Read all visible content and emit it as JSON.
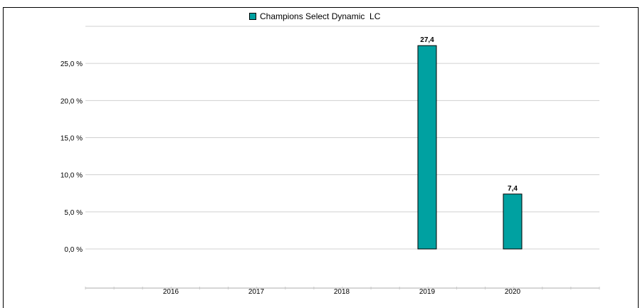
{
  "chart_data": {
    "type": "bar",
    "categories": [
      "2016",
      "2017",
      "2018",
      "2019",
      "2020"
    ],
    "series": [
      {
        "name": "Champions Select Dynamic  LC",
        "values": [
          null,
          null,
          null,
          27.4,
          7.4
        ],
        "data_labels": [
          "",
          "",
          "",
          "27,4",
          "7,4"
        ],
        "color": "#00a1a1"
      }
    ],
    "y_ticks": [
      0,
      5,
      10,
      15,
      20,
      25
    ],
    "y_tick_labels": [
      "0,0 %",
      "5,0 %",
      "10,0 %",
      "15,0 %",
      "20,0 %",
      "25,0 %"
    ],
    "ylim": [
      0,
      30
    ],
    "grid": true,
    "legend_position": "top-center",
    "title": "",
    "xlabel": "",
    "ylabel": ""
  }
}
